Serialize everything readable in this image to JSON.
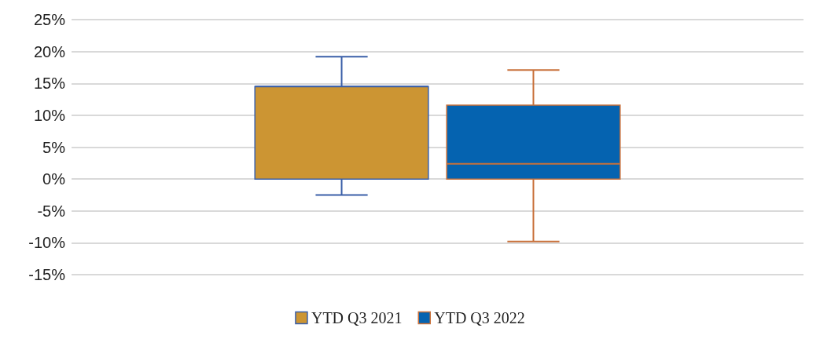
{
  "chart_data": {
    "type": "box",
    "categories": [
      null
    ],
    "series": [
      {
        "name": "YTD Q3 2021",
        "color": "#cc9533",
        "boxes": [
          {
            "low": -2.5,
            "q1": 0,
            "median": 14.5,
            "q3": 14.5,
            "high": 19.2
          }
        ]
      },
      {
        "name": "YTD Q3 2022",
        "color": "#0563b0",
        "boxes": [
          {
            "low": -9.8,
            "q1": 0,
            "median": 2.4,
            "q3": 11.6,
            "high": 17.1
          }
        ]
      }
    ],
    "ylim": [
      -15,
      25
    ],
    "yticks": [
      {
        "value": -15,
        "label": "-15%"
      },
      {
        "value": -10,
        "label": "-10%"
      },
      {
        "value": -5,
        "label": "-5%"
      },
      {
        "value": 0,
        "label": "0%"
      },
      {
        "value": 5,
        "label": "5%"
      },
      {
        "value": 10,
        "label": "10%"
      },
      {
        "value": 15,
        "label": "15%"
      },
      {
        "value": 20,
        "label": "20%"
      },
      {
        "value": 25,
        "label": "25%"
      }
    ],
    "grid": "y",
    "legend": "bottom"
  }
}
